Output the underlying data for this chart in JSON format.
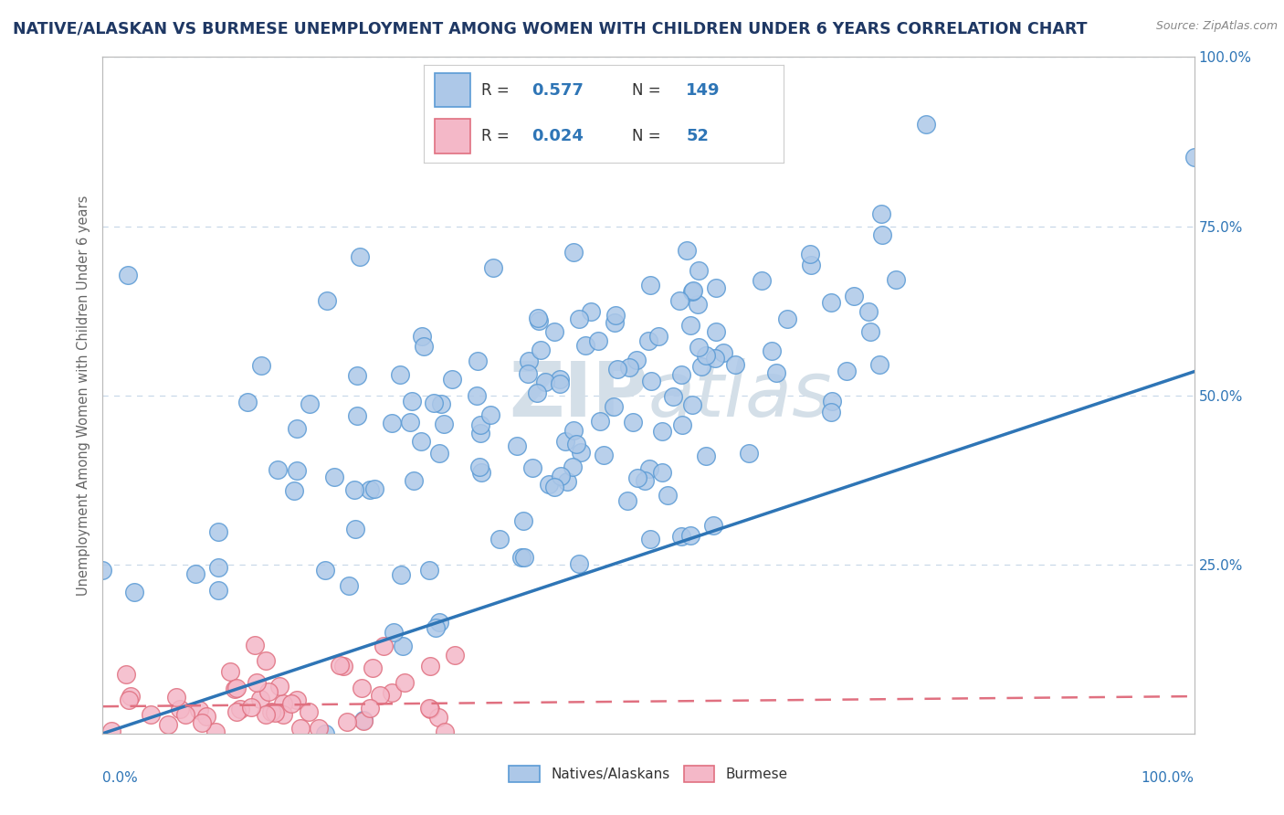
{
  "title": "NATIVE/ALASKAN VS BURMESE UNEMPLOYMENT AMONG WOMEN WITH CHILDREN UNDER 6 YEARS CORRELATION CHART",
  "source": "Source: ZipAtlas.com",
  "ylabel": "Unemployment Among Women with Children Under 6 years",
  "xlim": [
    0,
    1
  ],
  "ylim": [
    0,
    1
  ],
  "native_R": 0.577,
  "native_N": 149,
  "burmese_R": 0.024,
  "burmese_N": 52,
  "native_color": "#adc8e8",
  "native_edge_color": "#5b9bd5",
  "burmese_color": "#f4b8c8",
  "burmese_edge_color": "#e07080",
  "native_line_color": "#2e75b6",
  "burmese_line_color": "#e07080",
  "background_color": "#ffffff",
  "watermark_color": "#d4dfe8",
  "grid_color": "#c8d8e8",
  "title_color": "#1f3864",
  "axis_label_color": "#2e75b6",
  "legend_R_color": "#2e75b6",
  "native_scatter_seed": 42,
  "burmese_scatter_seed": 7,
  "native_line_x0": 0.0,
  "native_line_y0": 0.0,
  "native_line_x1": 1.0,
  "native_line_y1": 0.535,
  "burmese_line_x0": 0.0,
  "burmese_line_y0": 0.04,
  "burmese_line_x1": 1.0,
  "burmese_line_y1": 0.055
}
